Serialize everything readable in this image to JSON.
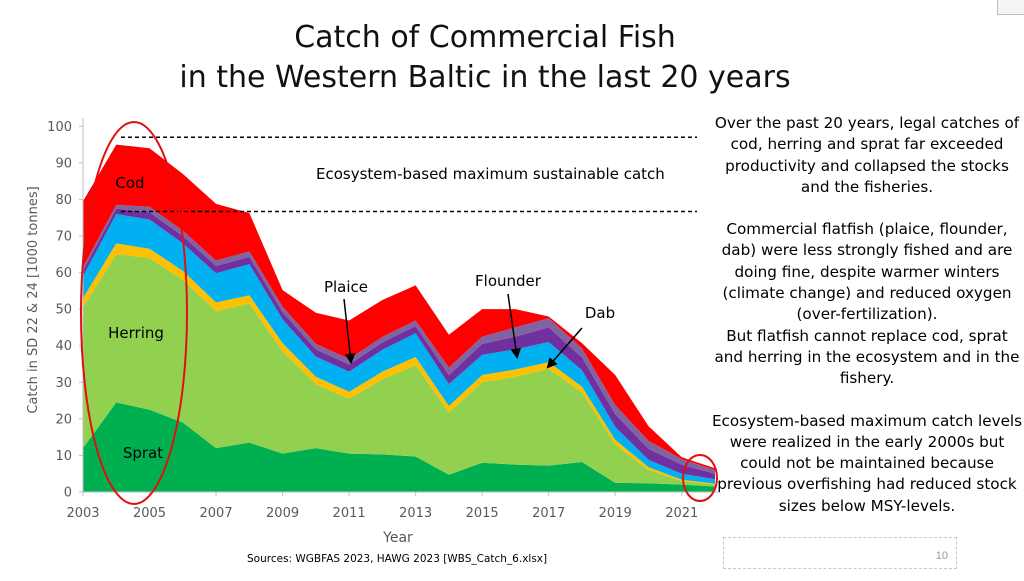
{
  "slide": {
    "title_line1": "Catch of Commercial Fish",
    "title_line2": "in the Western Baltic in the last 20 years",
    "paragraphs": [
      "Over the past 20 years, legal catches of cod, herring and sprat far exceeded productivity and collapsed the stocks and the fisheries.",
      "Commercial flatfish (plaice, flounder, dab) were less strongly fished and are doing fine, despite warmer winters (climate change) and reduced oxygen (over-fertilization).",
      "But flatfish cannot replace cod, sprat and herring in the ecosystem and in the fishery.",
      "Ecosystem-based maximum catch levels were realized in the early 2000s but could not be maintained because previous overfishing had reduced stock sizes below MSY-levels."
    ],
    "source": "Sources: WGBFAS 2023, HAWG 2023 [WBS_Catch_6.xlsx]",
    "page_number": "10"
  },
  "chart_data": {
    "type": "area",
    "stacked": true,
    "x": [
      2003,
      2004,
      2005,
      2006,
      2007,
      2008,
      2009,
      2010,
      2011,
      2012,
      2013,
      2014,
      2015,
      2016,
      2017,
      2018,
      2019,
      2020,
      2021,
      2022
    ],
    "series": [
      {
        "name": "Sprat",
        "color": "#00b050",
        "values": [
          12,
          24.5,
          22.5,
          19,
          12,
          13.5,
          10.5,
          12,
          10.5,
          10.3,
          9.7,
          4.7,
          8,
          7.5,
          7.2,
          8.2,
          2.5,
          2.4,
          2,
          1.5
        ]
      },
      {
        "name": "Herring",
        "color": "#92d050",
        "values": [
          38.5,
          40.5,
          41.5,
          39,
          37.5,
          38,
          28,
          17.5,
          15,
          20.5,
          25,
          17,
          22,
          24,
          26.5,
          19,
          10.5,
          3.6,
          1,
          0.5
        ]
      },
      {
        "name": "",
        "color": "#ffc000",
        "values": [
          2.5,
          3,
          2.5,
          2.5,
          2.3,
          2.3,
          2.2,
          2,
          1.9,
          2.1,
          2.2,
          1.8,
          2,
          2,
          1.8,
          1.6,
          1.3,
          0.8,
          0.4,
          0.3
        ]
      },
      {
        "name": "Flounder",
        "color": "#00b0f0",
        "values": [
          6,
          8,
          8,
          7.5,
          8,
          8.5,
          6.5,
          5.5,
          5.5,
          6,
          6.5,
          6,
          5.5,
          5.5,
          5.5,
          4.5,
          3.5,
          2,
          1.6,
          1.2
        ]
      },
      {
        "name": "Plaice",
        "color": "#7030a0",
        "values": [
          1.5,
          1.5,
          2,
          2,
          2,
          2,
          2,
          2,
          2,
          2,
          2,
          2.5,
          3,
          3.5,
          4,
          3.5,
          3.5,
          3,
          2.5,
          1.5
        ]
      },
      {
        "name": "Dab",
        "color": "#8064a2",
        "values": [
          1,
          1,
          1.5,
          1.5,
          1.5,
          1.5,
          1.5,
          1.5,
          1.5,
          1.5,
          1.5,
          2,
          2,
          2.5,
          2.5,
          2.5,
          2.5,
          2.2,
          1.5,
          1
        ]
      },
      {
        "name": "Cod",
        "color": "#ff0000",
        "values": [
          18,
          16.5,
          16,
          15.5,
          15.5,
          10.5,
          4.5,
          8.5,
          10.5,
          10.1,
          9.6,
          9,
          7.5,
          5,
          0.5,
          1.4,
          8.2,
          4,
          0.5,
          0.5
        ]
      }
    ],
    "xlabel": "Year",
    "ylabel": "Catch in SD 22 & 24 [1000 tonnes]",
    "ylim": [
      0,
      105
    ],
    "yticks": [
      0,
      10,
      20,
      30,
      40,
      50,
      60,
      70,
      80,
      90,
      100
    ],
    "xticks": [
      2003,
      2005,
      2007,
      2009,
      2011,
      2013,
      2015,
      2017,
      2019,
      2021
    ],
    "reference_lines": [
      {
        "label": "Ecosystem-based maximum sustainable catch",
        "y": 97
      },
      {
        "label": "",
        "y": 76.7
      }
    ],
    "area_labels": [
      {
        "text": "Cod",
        "color": "#000000"
      },
      {
        "text": "Herring",
        "color": "#000000"
      },
      {
        "text": "Sprat",
        "color": "#000000"
      }
    ],
    "arrow_labels": [
      "Plaice",
      "Flounder",
      "Dab"
    ],
    "grid": false,
    "legend": "none"
  }
}
